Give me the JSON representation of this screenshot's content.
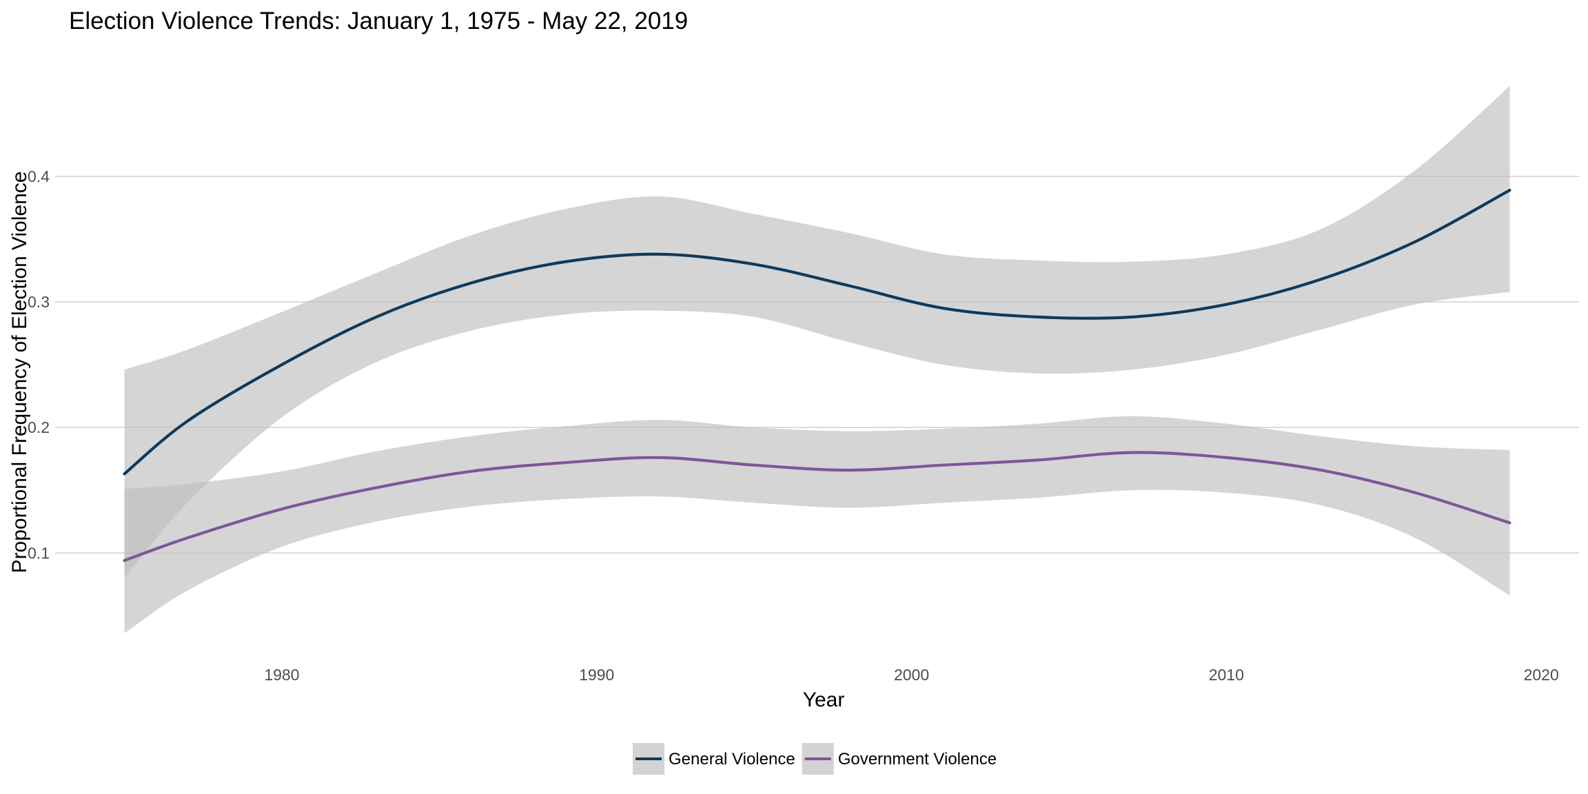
{
  "chart_data": {
    "type": "line",
    "title": "Election Violence Trends: January 1, 1975 - May 22, 2019",
    "xlabel": "Year",
    "ylabel": "Proportional Frequency of Election Violence",
    "xlim": [
      1972.8,
      2021.2
    ],
    "ylim": [
      0.02,
      0.49
    ],
    "x_ticks": [
      1980,
      1990,
      2000,
      2010,
      2020
    ],
    "y_ticks": [
      0.1,
      0.2,
      0.3,
      0.4
    ],
    "grid": "horizontal-major",
    "legend_position": "bottom",
    "band_color": "#bebebe",
    "x": [
      1975,
      1977,
      1980,
      1983,
      1986,
      1989,
      1992,
      1995,
      1998,
      2001,
      2004,
      2007,
      2010,
      2013,
      2016,
      2019
    ],
    "series": [
      {
        "name": "General Violence",
        "color": "#0e3a5c",
        "values": [
          0.163,
          0.205,
          0.25,
          0.288,
          0.315,
          0.332,
          0.338,
          0.33,
          0.313,
          0.295,
          0.288,
          0.288,
          0.298,
          0.318,
          0.348,
          0.389
        ],
        "lower": [
          0.08,
          0.14,
          0.208,
          0.252,
          0.277,
          0.29,
          0.293,
          0.288,
          0.268,
          0.25,
          0.243,
          0.246,
          0.258,
          0.278,
          0.298,
          0.308
        ],
        "upper": [
          0.246,
          0.262,
          0.292,
          0.323,
          0.353,
          0.374,
          0.384,
          0.37,
          0.355,
          0.338,
          0.333,
          0.332,
          0.338,
          0.358,
          0.405,
          0.472
        ]
      },
      {
        "name": "Government Violence",
        "color": "#7e569a",
        "values": [
          0.094,
          0.112,
          0.135,
          0.152,
          0.165,
          0.172,
          0.176,
          0.17,
          0.166,
          0.17,
          0.174,
          0.18,
          0.176,
          0.166,
          0.148,
          0.124
        ],
        "lower": [
          0.036,
          0.07,
          0.105,
          0.125,
          0.137,
          0.143,
          0.145,
          0.14,
          0.136,
          0.14,
          0.144,
          0.15,
          0.148,
          0.138,
          0.112,
          0.066
        ],
        "upper": [
          0.151,
          0.155,
          0.165,
          0.181,
          0.193,
          0.201,
          0.206,
          0.2,
          0.197,
          0.199,
          0.203,
          0.209,
          0.203,
          0.193,
          0.185,
          0.182
        ]
      }
    ]
  }
}
